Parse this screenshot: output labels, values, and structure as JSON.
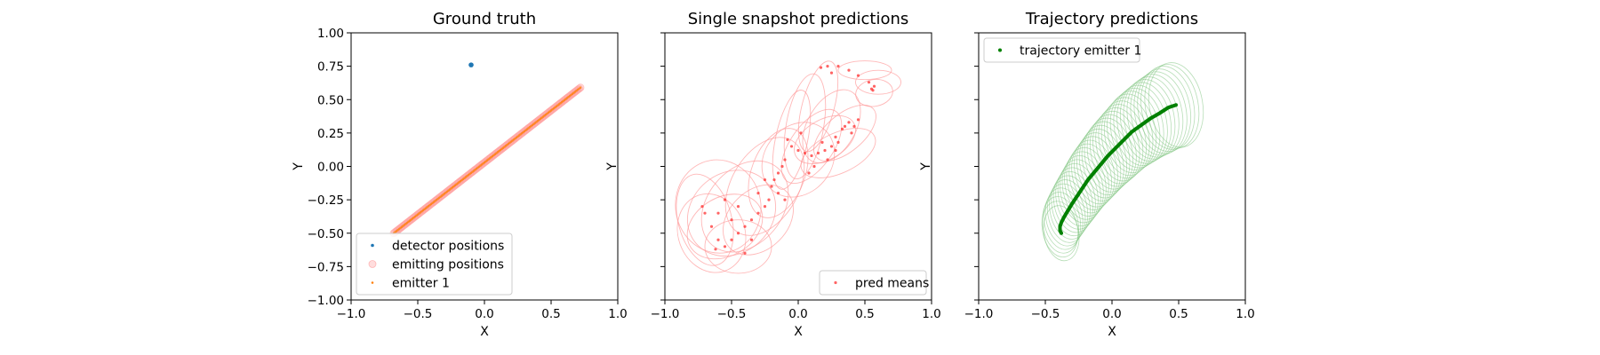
{
  "chart_data": [
    {
      "type": "scatter",
      "title": "Ground truth",
      "xlabel": "X",
      "ylabel": "Y",
      "xlim": [
        -1.0,
        1.0
      ],
      "ylim": [
        -1.0,
        1.0
      ],
      "xticks": [
        "−1.0",
        "−0.5",
        "0.0",
        "0.5",
        "1.0"
      ],
      "yticks": [
        "−1.00",
        "−0.75",
        "−0.50",
        "−0.25",
        "0.00",
        "0.25",
        "0.50",
        "0.75",
        "1.00"
      ],
      "show_yticklabels": true,
      "legend_position": "lower-left",
      "colors": {
        "detector": "#1f77b4",
        "emitting": "#ff9f9f",
        "emitter": "#ff7f0e"
      },
      "series": [
        {
          "name": "detector positions",
          "kind": "detector",
          "points": [
            [
              -0.1,
              0.76
            ]
          ]
        },
        {
          "name": "emitting positions",
          "kind": "emitting",
          "line_from": [
            -0.68,
            -0.5
          ],
          "line_to": [
            0.72,
            0.59
          ]
        },
        {
          "name": "emitter 1",
          "kind": "emitter",
          "line_from": [
            -0.68,
            -0.5
          ],
          "line_to": [
            0.72,
            0.59
          ]
        }
      ]
    },
    {
      "type": "scatter",
      "title": "Single snapshot predictions",
      "xlabel": "X",
      "ylabel": "Y",
      "xlim": [
        -1.0,
        1.0
      ],
      "ylim": [
        -1.0,
        1.0
      ],
      "xticks": [
        "−1.0",
        "−0.5",
        "0.0",
        "0.5",
        "1.0"
      ],
      "yticks": [
        "−1.00",
        "−0.75",
        "−0.50",
        "−0.25",
        "0.00",
        "0.25",
        "0.50",
        "0.75",
        "1.00"
      ],
      "show_yticklabels": false,
      "legend_position": "lower-right",
      "colors": {
        "means": "#ff3030",
        "ellipses": "#ff9a9a"
      },
      "series": [
        {
          "name": "pred means",
          "kind": "means",
          "points": [
            [
              0.55,
              0.58
            ],
            [
              0.57,
              0.6
            ],
            [
              0.56,
              0.57
            ],
            [
              0.53,
              0.63
            ],
            [
              0.45,
              0.68
            ],
            [
              0.38,
              0.72
            ],
            [
              0.3,
              0.75
            ],
            [
              0.22,
              0.75
            ],
            [
              0.17,
              0.74
            ],
            [
              0.25,
              0.7
            ],
            [
              0.35,
              0.3
            ],
            [
              0.38,
              0.33
            ],
            [
              0.42,
              0.3
            ],
            [
              0.33,
              0.28
            ],
            [
              0.28,
              0.22
            ],
            [
              0.3,
              0.18
            ],
            [
              0.25,
              0.15
            ],
            [
              0.2,
              0.12
            ],
            [
              0.15,
              0.1
            ],
            [
              0.1,
              0.08
            ],
            [
              0.05,
              0.1
            ],
            [
              0.0,
              0.12
            ],
            [
              -0.05,
              0.15
            ],
            [
              0.02,
              0.25
            ],
            [
              -0.08,
              0.2
            ],
            [
              -0.1,
              0.05
            ],
            [
              -0.12,
              0.0
            ],
            [
              -0.15,
              -0.05
            ],
            [
              -0.18,
              -0.1
            ],
            [
              -0.2,
              -0.15
            ],
            [
              -0.15,
              -0.2
            ],
            [
              -0.1,
              -0.25
            ],
            [
              -0.22,
              -0.25
            ],
            [
              -0.25,
              -0.3
            ],
            [
              -0.3,
              -0.35
            ],
            [
              -0.35,
              -0.4
            ],
            [
              -0.4,
              -0.45
            ],
            [
              -0.45,
              -0.5
            ],
            [
              -0.5,
              -0.55
            ],
            [
              -0.55,
              -0.6
            ],
            [
              -0.6,
              -0.55
            ],
            [
              -0.65,
              -0.45
            ],
            [
              -0.7,
              -0.35
            ],
            [
              -0.72,
              -0.3
            ],
            [
              -0.6,
              -0.35
            ],
            [
              -0.55,
              -0.25
            ],
            [
              -0.5,
              -0.4
            ],
            [
              -0.4,
              -0.65
            ],
            [
              -0.35,
              -0.55
            ],
            [
              -0.62,
              -0.62
            ],
            [
              0.18,
              0.18
            ],
            [
              0.22,
              0.05
            ],
            [
              0.12,
              0.0
            ],
            [
              0.08,
              -0.05
            ],
            [
              0.28,
              0.12
            ],
            [
              0.4,
              0.25
            ],
            [
              0.45,
              0.35
            ],
            [
              -0.25,
              -0.1
            ],
            [
              -0.3,
              -0.2
            ],
            [
              -0.45,
              -0.3
            ]
          ]
        }
      ],
      "ellipses": [
        {
          "cx": 0.6,
          "cy": 0.63,
          "rx": 0.17,
          "ry": 0.09,
          "angle": 0
        },
        {
          "cx": 0.57,
          "cy": 0.55,
          "rx": 0.14,
          "ry": 0.1,
          "angle": 10
        },
        {
          "cx": 0.5,
          "cy": 0.72,
          "rx": 0.2,
          "ry": 0.07,
          "angle": 0
        },
        {
          "cx": 0.15,
          "cy": 0.45,
          "rx": 0.35,
          "ry": 0.12,
          "angle": 75
        },
        {
          "cx": 0.25,
          "cy": 0.3,
          "rx": 0.3,
          "ry": 0.18,
          "angle": 60
        },
        {
          "cx": 0.35,
          "cy": 0.25,
          "rx": 0.28,
          "ry": 0.14,
          "angle": 40
        },
        {
          "cx": 0.05,
          "cy": 0.3,
          "rx": 0.4,
          "ry": 0.14,
          "angle": 80
        },
        {
          "cx": -0.05,
          "cy": 0.2,
          "rx": 0.38,
          "ry": 0.12,
          "angle": 78
        },
        {
          "cx": 0.1,
          "cy": 0.15,
          "rx": 0.32,
          "ry": 0.16,
          "angle": 55
        },
        {
          "cx": 0.2,
          "cy": 0.2,
          "rx": 0.25,
          "ry": 0.15,
          "angle": 30
        },
        {
          "cx": -0.15,
          "cy": -0.05,
          "rx": 0.35,
          "ry": 0.2,
          "angle": 70
        },
        {
          "cx": -0.25,
          "cy": -0.15,
          "rx": 0.4,
          "ry": 0.25,
          "angle": 60
        },
        {
          "cx": -0.4,
          "cy": -0.3,
          "rx": 0.38,
          "ry": 0.28,
          "angle": 50
        },
        {
          "cx": -0.5,
          "cy": -0.35,
          "rx": 0.35,
          "ry": 0.3,
          "angle": 40
        },
        {
          "cx": -0.55,
          "cy": -0.45,
          "rx": 0.3,
          "ry": 0.22,
          "angle": 30
        },
        {
          "cx": -0.65,
          "cy": -0.5,
          "rx": 0.25,
          "ry": 0.3,
          "angle": 20
        },
        {
          "cx": -0.6,
          "cy": -0.3,
          "rx": 0.32,
          "ry": 0.35,
          "angle": 10
        },
        {
          "cx": -0.45,
          "cy": -0.6,
          "rx": 0.25,
          "ry": 0.2,
          "angle": 0
        },
        {
          "cx": -0.3,
          "cy": -0.4,
          "rx": 0.3,
          "ry": 0.22,
          "angle": 45
        },
        {
          "cx": -0.7,
          "cy": -0.4,
          "rx": 0.2,
          "ry": 0.35,
          "angle": 15
        },
        {
          "cx": 0.0,
          "cy": 0.05,
          "rx": 0.3,
          "ry": 0.25,
          "angle": 50
        },
        {
          "cx": 0.3,
          "cy": 0.1,
          "rx": 0.3,
          "ry": 0.15,
          "angle": 25
        }
      ]
    },
    {
      "type": "scatter",
      "title": "Trajectory predictions",
      "xlabel": "X",
      "ylabel": "Y",
      "xlim": [
        -1.0,
        1.0
      ],
      "ylim": [
        -1.0,
        1.0
      ],
      "xticks": [
        "−1.0",
        "−0.5",
        "0.0",
        "0.5",
        "1.0"
      ],
      "yticks": [
        "−1.00",
        "−0.75",
        "−0.50",
        "−0.25",
        "0.00",
        "0.25",
        "0.50",
        "0.75",
        "1.00"
      ],
      "show_yticklabels": false,
      "legend_position": "upper-left",
      "colors": {
        "trajectory": "#008000",
        "ellipses": "#7cc27c"
      },
      "series": [
        {
          "name": "trajectory emitter 1",
          "kind": "trajectory",
          "points": [
            [
              -0.38,
              -0.5
            ],
            [
              -0.39,
              -0.48
            ],
            [
              -0.39,
              -0.45
            ],
            [
              -0.38,
              -0.42
            ],
            [
              -0.36,
              -0.38
            ],
            [
              -0.33,
              -0.33
            ],
            [
              -0.3,
              -0.28
            ],
            [
              -0.26,
              -0.22
            ],
            [
              -0.22,
              -0.16
            ],
            [
              -0.18,
              -0.1
            ],
            [
              -0.13,
              -0.04
            ],
            [
              -0.08,
              0.02
            ],
            [
              -0.03,
              0.08
            ],
            [
              0.03,
              0.14
            ],
            [
              0.09,
              0.2
            ],
            [
              0.15,
              0.26
            ],
            [
              0.22,
              0.31
            ],
            [
              0.29,
              0.36
            ],
            [
              0.36,
              0.4
            ],
            [
              0.42,
              0.44
            ],
            [
              0.48,
              0.46
            ]
          ]
        }
      ],
      "ellipse_sweep": {
        "rx": 0.2,
        "ry": 0.32,
        "angle": 10,
        "count": 42
      }
    }
  ]
}
